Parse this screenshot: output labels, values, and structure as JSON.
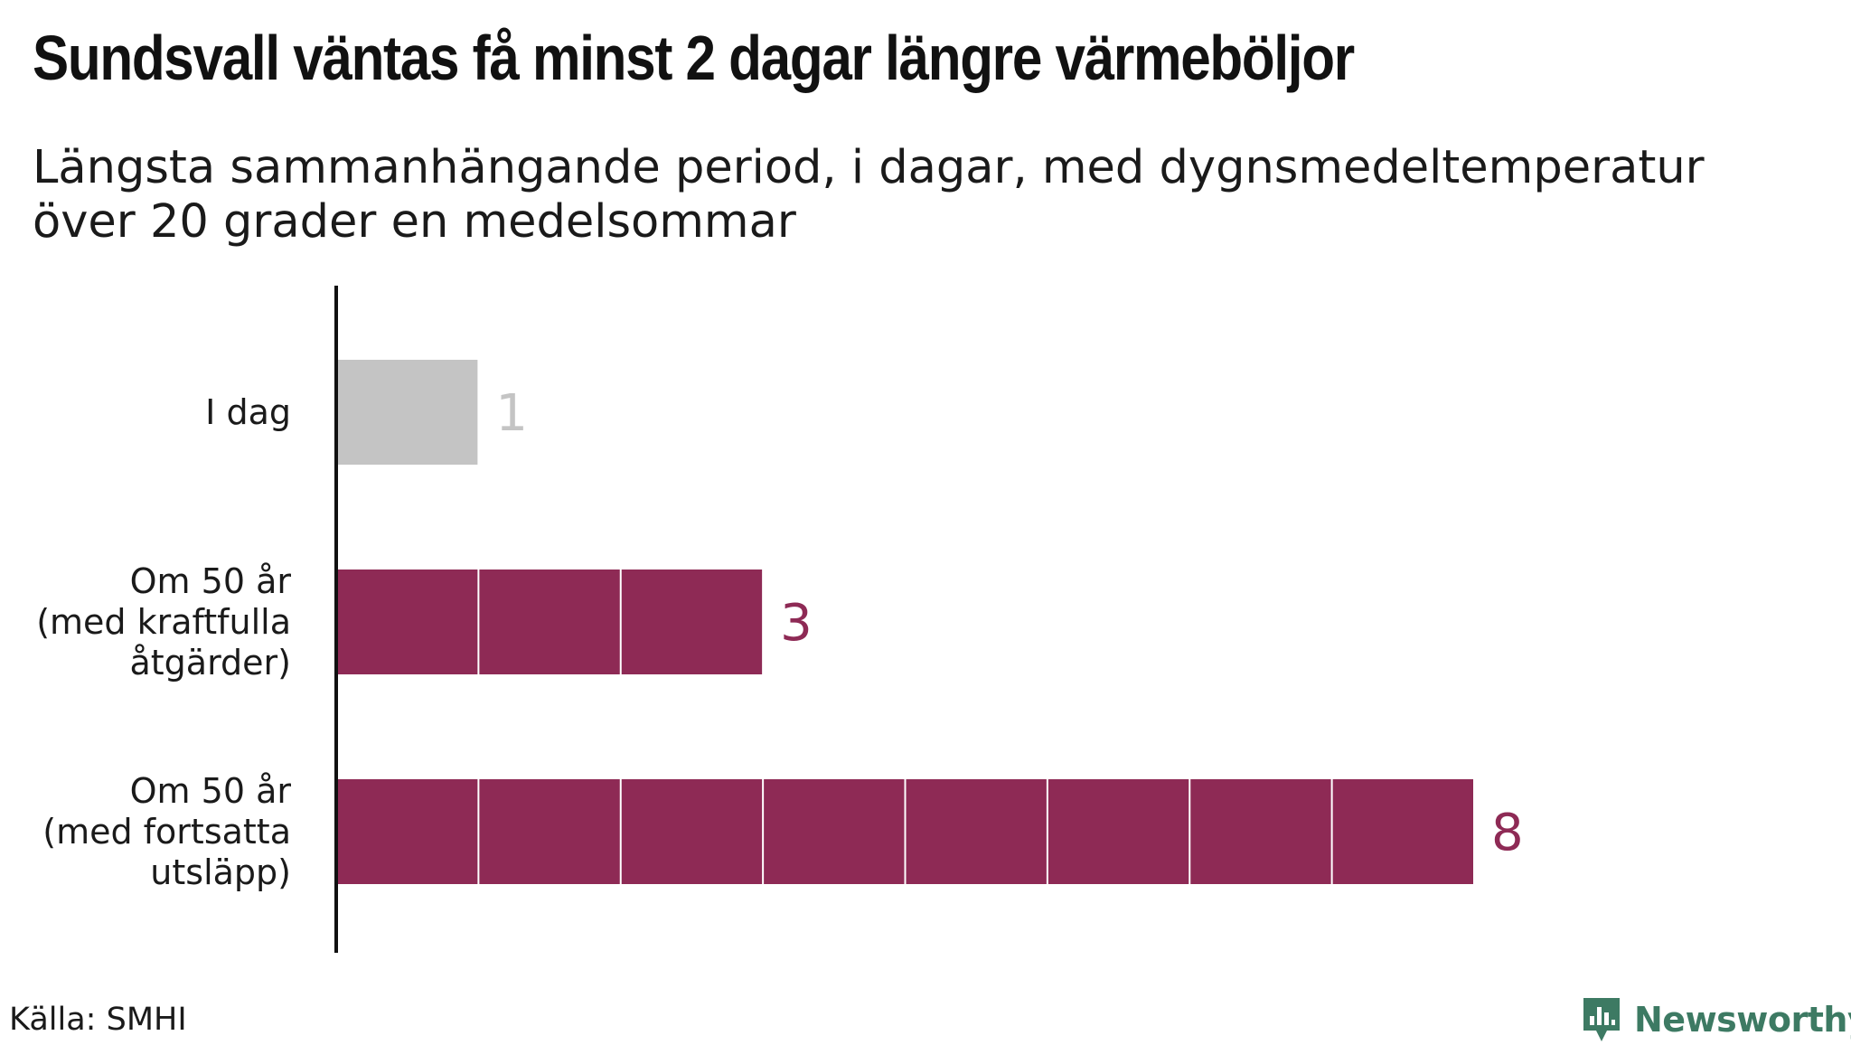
{
  "title": "Sundsvall väntas få minst 2 dagar längre värmeböljor",
  "subtitle": "Längsta sammanhängande period, i dagar, med dygnsmedeltemperatur över 20 grader en medelsommar",
  "source": "Källa: SMHI",
  "logo": {
    "text": "Newsworthy",
    "icon": "newsworthy-bar-chart-icon",
    "color": "#3d7a63"
  },
  "colors": {
    "today": "#c4c4c4",
    "future": "#8e2a55",
    "today_label": "#c4c4c4",
    "future_label": "#8e2a55",
    "axis": "#111111"
  },
  "chart_data": {
    "type": "bar",
    "orientation": "horizontal",
    "categories": [
      [
        "I dag"
      ],
      [
        "Om 50 år",
        "(med kraftfulla",
        "åtgärder)"
      ],
      [
        "Om 50 år",
        "(med fortsatta",
        "utsläpp)"
      ]
    ],
    "values": [
      1,
      3,
      8
    ],
    "value_labels": [
      "1",
      "3",
      "8"
    ],
    "xlim": [
      0,
      8
    ],
    "grid": false,
    "segmented": true
  }
}
